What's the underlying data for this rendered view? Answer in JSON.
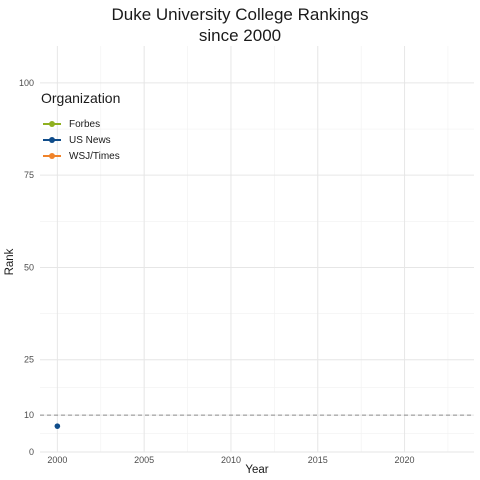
{
  "title_lines": [
    "Duke University College Rankings",
    "since 2000"
  ],
  "chart_data": {
    "type": "line",
    "title": "Duke University College Rankings since 2000",
    "xlabel": "Year",
    "ylabel": "Rank",
    "xlim": [
      1999,
      2024
    ],
    "ylim": [
      0,
      110
    ],
    "x_ticks": [
      2000,
      2005,
      2010,
      2015,
      2020
    ],
    "y_ticks": [
      0,
      10,
      25,
      50,
      75,
      100
    ],
    "reference_line": {
      "y": 10,
      "style": "dashed",
      "color": "#8c8c8c"
    },
    "grid": true,
    "legend": {
      "title": "Organization",
      "position": "top-left"
    },
    "series": [
      {
        "name": "Forbes",
        "color": "#8fb01f",
        "points": []
      },
      {
        "name": "US News",
        "color": "#0f4c8a",
        "points": [
          {
            "x": 2000,
            "y": 7
          }
        ]
      },
      {
        "name": "WSJ/Times",
        "color": "#f0832a",
        "points": []
      }
    ]
  }
}
